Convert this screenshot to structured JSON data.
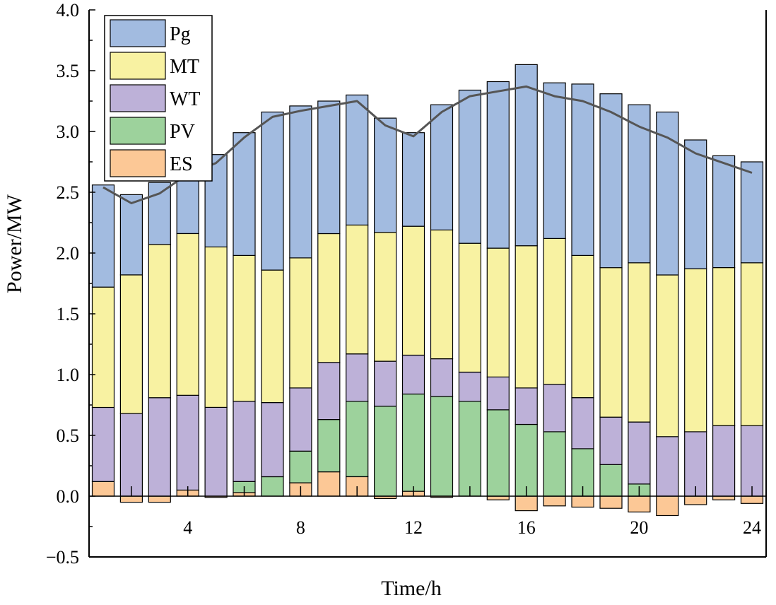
{
  "chart_data": {
    "type": "bar",
    "stacked": true,
    "title": "",
    "xlabel": "Time/h",
    "ylabel": "Power/MW",
    "ylim": [
      -0.5,
      4.0
    ],
    "xlim": [
      0.5,
      24.5
    ],
    "yticks": [
      -0.5,
      0.0,
      0.5,
      1.0,
      1.5,
      2.0,
      2.5,
      3.0,
      3.5,
      4.0
    ],
    "ytick_labels": [
      "−0.5",
      "0.0",
      "0.5",
      "1.0",
      "1.5",
      "2.0",
      "2.5",
      "3.0",
      "3.5",
      "4.0"
    ],
    "xticks": [
      4,
      8,
      12,
      16,
      20,
      24
    ],
    "xtick_labels": [
      "4",
      "8",
      "12",
      "16",
      "20",
      "24"
    ],
    "legend_position": "top-left",
    "categories": [
      1,
      2,
      3,
      4,
      5,
      6,
      7,
      8,
      9,
      10,
      11,
      12,
      13,
      14,
      15,
      16,
      17,
      18,
      19,
      20,
      21,
      22,
      23,
      24
    ],
    "series": [
      {
        "name": "ES",
        "color": "#fcc896",
        "values": [
          0.12,
          -0.05,
          -0.05,
          0.05,
          -0.01,
          0.03,
          0.0,
          0.11,
          0.2,
          0.16,
          -0.02,
          0.04,
          -0.01,
          0.0,
          -0.03,
          -0.12,
          -0.08,
          -0.09,
          -0.1,
          -0.13,
          -0.16,
          -0.07,
          -0.03,
          -0.06
        ]
      },
      {
        "name": "PV",
        "color": "#9dd29c",
        "values": [
          0.0,
          0.0,
          0.0,
          0.0,
          0.0,
          0.09,
          0.16,
          0.26,
          0.43,
          0.62,
          0.74,
          0.8,
          0.82,
          0.78,
          0.71,
          0.59,
          0.53,
          0.39,
          0.26,
          0.1,
          0.0,
          0.0,
          0.0,
          0.0
        ]
      },
      {
        "name": "WT",
        "color": "#bdb1d8",
        "values": [
          0.61,
          0.68,
          0.81,
          0.78,
          0.73,
          0.66,
          0.61,
          0.52,
          0.47,
          0.39,
          0.37,
          0.32,
          0.31,
          0.24,
          0.27,
          0.3,
          0.39,
          0.42,
          0.39,
          0.51,
          0.49,
          0.53,
          0.58,
          0.58
        ]
      },
      {
        "name": "MT",
        "color": "#f8f2a2",
        "values": [
          0.99,
          1.14,
          1.26,
          1.33,
          1.32,
          1.2,
          1.09,
          1.07,
          1.06,
          1.06,
          1.06,
          1.06,
          1.06,
          1.06,
          1.06,
          1.17,
          1.2,
          1.17,
          1.23,
          1.31,
          1.33,
          1.34,
          1.3,
          1.34
        ]
      },
      {
        "name": "Pg",
        "color": "#a2bbe0",
        "values": [
          0.84,
          0.66,
          0.51,
          0.52,
          0.76,
          1.01,
          1.3,
          1.25,
          1.09,
          1.07,
          0.94,
          0.77,
          1.03,
          1.26,
          1.37,
          1.49,
          1.28,
          1.41,
          1.43,
          1.3,
          1.34,
          1.06,
          0.92,
          0.83
        ]
      }
    ],
    "legend_order": [
      "Pg",
      "MT",
      "WT",
      "PV",
      "ES"
    ],
    "load_line": {
      "name": "Load",
      "color": "#555555",
      "values": [
        2.54,
        2.41,
        2.49,
        2.65,
        2.74,
        2.95,
        3.12,
        3.17,
        3.21,
        3.25,
        3.05,
        2.96,
        3.16,
        3.29,
        3.33,
        3.37,
        3.29,
        3.25,
        3.16,
        3.04,
        2.95,
        2.82,
        2.74,
        2.66
      ]
    }
  }
}
